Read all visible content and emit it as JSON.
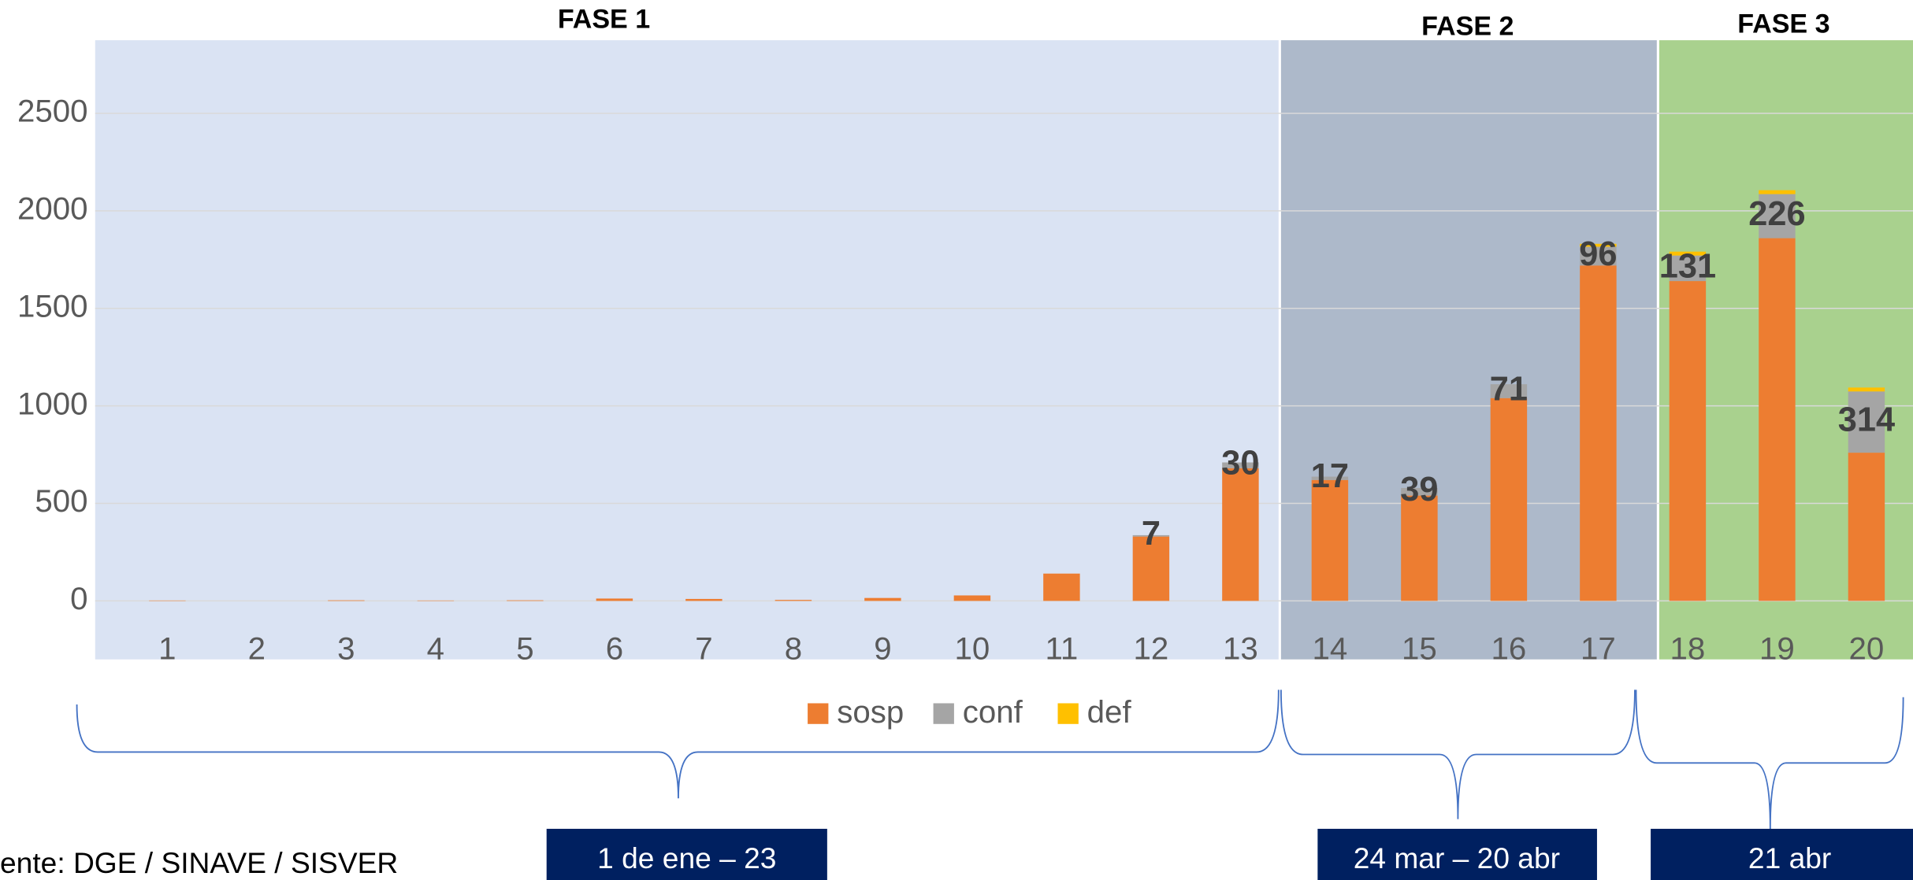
{
  "chart_data": {
    "type": "stacked_bar",
    "categories": [
      "1",
      "2",
      "3",
      "4",
      "5",
      "6",
      "7",
      "8",
      "9",
      "10",
      "11",
      "12",
      "13",
      "14",
      "15",
      "16",
      "17",
      "18",
      "19",
      "20"
    ],
    "series": [
      {
        "name": "sosp",
        "color": "#ed7d31",
        "values": [
          2,
          0,
          3,
          2,
          3,
          12,
          10,
          5,
          15,
          28,
          140,
          330,
          680,
          620,
          540,
          1040,
          1720,
          1640,
          1860,
          760
        ]
      },
      {
        "name": "conf",
        "color": "#a5a5a5",
        "values": [
          null,
          null,
          null,
          null,
          null,
          null,
          null,
          null,
          null,
          null,
          null,
          7,
          30,
          17,
          39,
          71,
          96,
          131,
          226,
          314
        ]
      },
      {
        "name": "def",
        "color": "#ffc000",
        "values": [
          null,
          null,
          null,
          null,
          null,
          null,
          null,
          null,
          null,
          null,
          null,
          null,
          null,
          null,
          null,
          null,
          15,
          20,
          20,
          20
        ]
      }
    ],
    "ylim": [
      0,
      2875
    ],
    "yticks": [
      0,
      500,
      1000,
      1500,
      2000,
      2500
    ],
    "grid": true,
    "legend": "bottom",
    "phases": [
      {
        "title": "FASE 1",
        "dates": "1 de ene – 23"
      },
      {
        "title": "FASE 2",
        "dates": "24 mar – 20 abr"
      },
      {
        "title": "FASE 3",
        "dates": "21 abr"
      }
    ],
    "source": "ente: DGE / SINAVE / SISVER"
  }
}
